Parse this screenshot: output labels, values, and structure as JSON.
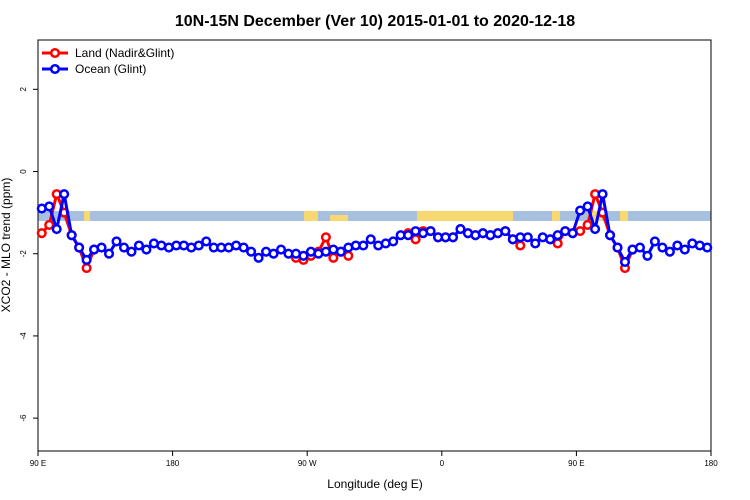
{
  "chart_data": {
    "type": "line",
    "title": "10N-15N December (Ver 10)   2015-01-01 to 2020-12-18",
    "xlabel": "Longitude (deg E)",
    "ylabel": "XCO2 - MLO trend (ppm)",
    "xlim": [
      90,
      540
    ],
    "ylim": [
      -6.8,
      3.2
    ],
    "xticks": [
      {
        "value": 90,
        "label": "90 E"
      },
      180,
      {
        "value": 270,
        "label": "90 W"
      },
      {
        "value": 360,
        "label": "0"
      },
      {
        "value": 450,
        "label": "90 E"
      },
      {
        "value": 540,
        "label": "180"
      }
    ],
    "yticks": [
      -6,
      -4,
      -2,
      0,
      2
    ],
    "legend": "top-left",
    "x": [
      92.5,
      97.5,
      102.5,
      107.5,
      112.5,
      117.5,
      122.5,
      127.5,
      132.5,
      137.5,
      142.5,
      147.5,
      152.5,
      157.5,
      162.5,
      167.5,
      172.5,
      177.5,
      182.5,
      187.5,
      192.5,
      197.5,
      202.5,
      207.5,
      212.5,
      217.5,
      222.5,
      227.5,
      232.5,
      237.5,
      242.5,
      247.5,
      252.5,
      257.5,
      262.5,
      267.5,
      272.5,
      277.5,
      282.5,
      287.5,
      292.5,
      297.5,
      302.5,
      307.5,
      312.5,
      317.5,
      322.5,
      327.5,
      332.5,
      337.5,
      342.5,
      347.5,
      352.5,
      357.5,
      362.5,
      367.5,
      372.5,
      377.5,
      382.5,
      387.5,
      392.5,
      397.5,
      402.5,
      407.5,
      412.5,
      417.5,
      422.5,
      427.5,
      432.5,
      437.5,
      442.5,
      447.5,
      452.5,
      457.5,
      462.5,
      467.5,
      472.5,
      477.5,
      482.5,
      487.5,
      492.5,
      497.5,
      502.5,
      507.5,
      512.5,
      517.5,
      522.5,
      527.5,
      532.5,
      537.5
    ],
    "series": [
      {
        "name": "Land (Nadir&Glint)",
        "color": "#ff0000",
        "values": [
          -1.5,
          -1.3,
          -0.55,
          -1.0,
          -1.55,
          -1.85,
          -2.35,
          -1.9,
          null,
          null,
          null,
          null,
          null,
          null,
          null,
          null,
          null,
          null,
          null,
          null,
          null,
          null,
          null,
          null,
          null,
          null,
          null,
          null,
          null,
          null,
          null,
          null,
          null,
          null,
          -2.1,
          -2.15,
          -2.05,
          -1.95,
          -1.6,
          -2.1,
          -1.95,
          -2.05,
          null,
          null,
          null,
          null,
          null,
          null,
          null,
          -1.5,
          -1.65,
          -1.45,
          -1.45,
          -1.6,
          -1.6,
          -1.6,
          -1.4,
          -1.5,
          -1.55,
          -1.5,
          -1.55,
          -1.5,
          -1.45,
          -1.65,
          -1.8,
          null,
          null,
          null,
          -1.65,
          -1.75,
          -1.45,
          -1.5,
          -1.45,
          -1.3,
          -0.55,
          -1.0,
          -1.55,
          -1.85,
          -2.35,
          -1.9,
          null,
          null,
          null,
          null,
          null,
          null,
          null,
          null,
          null,
          null
        ]
      },
      {
        "name": "Ocean (Glint)",
        "color": "#0000ff",
        "values": [
          -0.9,
          -0.85,
          -1.4,
          -0.55,
          -1.55,
          -1.85,
          -2.15,
          -1.9,
          -1.85,
          -2.0,
          -1.7,
          -1.85,
          -1.95,
          -1.8,
          -1.9,
          -1.75,
          -1.8,
          -1.85,
          -1.8,
          -1.8,
          -1.85,
          -1.8,
          -1.7,
          -1.85,
          -1.85,
          -1.85,
          -1.8,
          -1.85,
          -1.95,
          -2.1,
          -1.95,
          -2.0,
          -1.9,
          -2.0,
          -2.0,
          -2.05,
          -1.95,
          -2.0,
          -1.95,
          -1.9,
          -1.95,
          -1.85,
          -1.8,
          -1.8,
          -1.65,
          -1.8,
          -1.75,
          -1.7,
          -1.55,
          -1.55,
          -1.45,
          -1.5,
          -1.45,
          -1.6,
          -1.6,
          -1.6,
          -1.4,
          -1.5,
          -1.55,
          -1.5,
          -1.55,
          -1.5,
          -1.45,
          -1.65,
          -1.6,
          -1.6,
          -1.75,
          -1.6,
          -1.65,
          -1.55,
          -1.45,
          -1.5,
          -0.95,
          -0.85,
          -1.4,
          -0.55,
          -1.55,
          -1.85,
          -2.2,
          -1.9,
          -1.85,
          -2.05,
          -1.7,
          -1.85,
          -1.95,
          -1.8,
          -1.9,
          -1.75,
          -1.8,
          -1.85
        ]
      }
    ]
  }
}
